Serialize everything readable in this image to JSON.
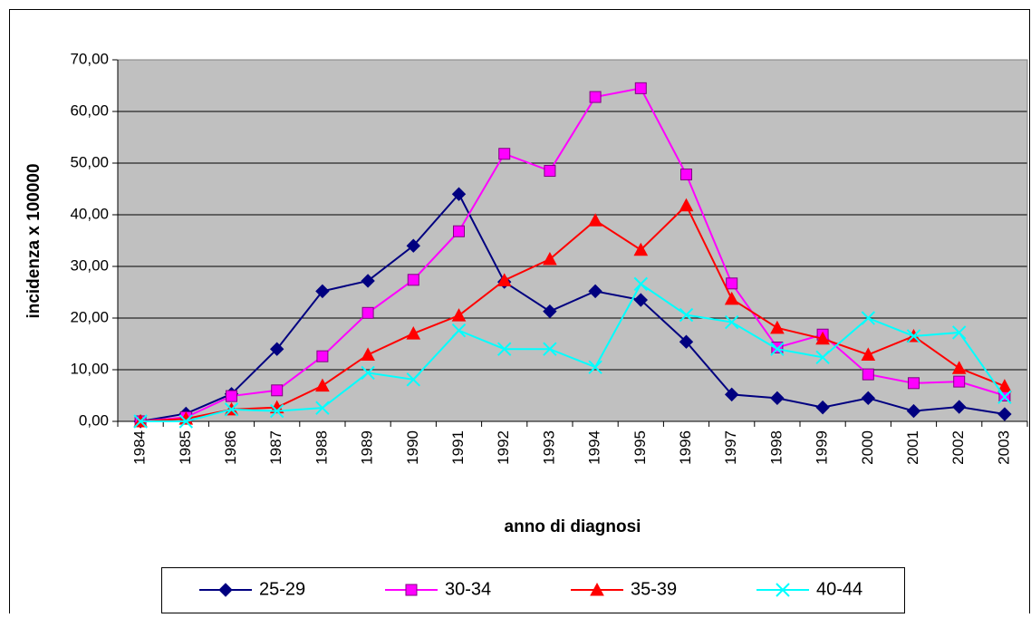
{
  "chart_data": {
    "type": "line",
    "y_label": "incidenza x 100000",
    "x_label": "anno di diagnosi",
    "categories": [
      "1984",
      "1985",
      "1986",
      "1987",
      "1988",
      "1989",
      "1990",
      "1991",
      "1992",
      "1993",
      "1994",
      "1995",
      "1996",
      "1997",
      "1998",
      "1999",
      "2000",
      "2001",
      "2002",
      "2003"
    ],
    "series": [
      {
        "name": "25-29",
        "color": "#000080",
        "marker": "diamond",
        "values": [
          0,
          1.5,
          5.3,
          14,
          25.2,
          27.2,
          34,
          44,
          27,
          21.3,
          25.2,
          23.5,
          15.4,
          5.2,
          4.5,
          2.7,
          4.5,
          2,
          2.8,
          1.4
        ]
      },
      {
        "name": "30-34",
        "color": "#ff00ff",
        "marker": "square",
        "values": [
          0,
          0.8,
          4.9,
          6,
          12.6,
          21,
          27.4,
          36.8,
          51.8,
          48.5,
          62.8,
          64.5,
          47.8,
          26.7,
          14.3,
          16.8,
          9.1,
          7.4,
          7.7,
          5
        ]
      },
      {
        "name": "35-39",
        "color": "#ff0000",
        "marker": "triangle",
        "values": [
          0,
          0.5,
          2.3,
          2.7,
          6.9,
          12.9,
          17,
          20.5,
          27.3,
          31.4,
          38.9,
          33.2,
          41.8,
          23.7,
          18.1,
          16,
          12.9,
          16.5,
          10.3,
          6.8
        ]
      },
      {
        "name": "40-44",
        "color": "#00ffff",
        "marker": "x",
        "values": [
          0,
          0,
          2.3,
          2,
          2.6,
          9.4,
          8.1,
          17.6,
          14,
          14,
          10.5,
          26.6,
          20.6,
          19.2,
          14,
          12.4,
          20,
          16.5,
          17.2,
          4.7
        ]
      }
    ],
    "ylim": [
      0,
      70
    ],
    "yticks": [
      {
        "value": 0,
        "label": "0,00"
      },
      {
        "value": 10,
        "label": "10,00"
      },
      {
        "value": 20,
        "label": "20,00"
      },
      {
        "value": 30,
        "label": "30,00"
      },
      {
        "value": 40,
        "label": "40,00"
      },
      {
        "value": 50,
        "label": "50,00"
      },
      {
        "value": 60,
        "label": "60,00"
      },
      {
        "value": 70,
        "label": "70,00"
      }
    ],
    "grid": true,
    "plot_background": "#c0c0c0",
    "legend": "bottom"
  }
}
